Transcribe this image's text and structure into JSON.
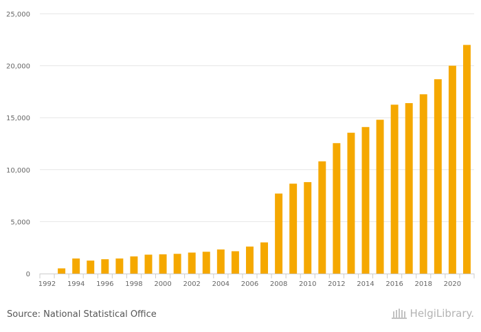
{
  "chart_data": {
    "type": "bar",
    "x": [
      1992,
      1993,
      1994,
      1995,
      1996,
      1997,
      1998,
      1999,
      2000,
      2001,
      2002,
      2003,
      2004,
      2005,
      2006,
      2007,
      2008,
      2009,
      2010,
      2011,
      2012,
      2013,
      2014,
      2015,
      2016,
      2017,
      2018,
      2019,
      2020,
      2021
    ],
    "x_tick_labels": [
      "1992",
      "1994",
      "1996",
      "1998",
      "2000",
      "2002",
      "2004",
      "2006",
      "2008",
      "2010",
      "2012",
      "2014",
      "2016",
      "2018",
      "2020"
    ],
    "values": [
      0,
      500,
      1450,
      1250,
      1380,
      1450,
      1650,
      1820,
      1850,
      1900,
      2020,
      2100,
      2320,
      2150,
      2600,
      3000,
      7700,
      8650,
      8800,
      10800,
      12550,
      13550,
      14100,
      14800,
      16250,
      16400,
      17250,
      18700,
      20000,
      22000
    ],
    "y_ticks": [
      0,
      5000,
      10000,
      15000,
      20000,
      25000
    ],
    "y_tick_labels": [
      "0",
      "5,000",
      "10,000",
      "15,000",
      "20,000",
      "25,000"
    ],
    "ylim": [
      0,
      25000
    ],
    "grid": true,
    "bar_color": "#f5a800",
    "title": "",
    "xlabel": "",
    "ylabel": ""
  },
  "footer": {
    "source": "Source: National Statistical Office",
    "brand": "HelgiLibrary."
  }
}
